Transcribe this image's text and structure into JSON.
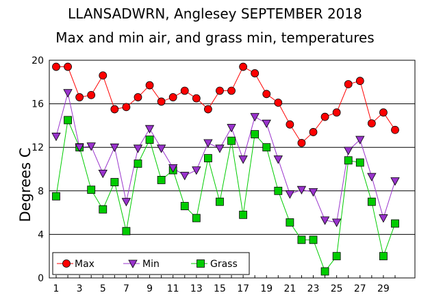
{
  "chart_data": {
    "type": "line",
    "title": "LLANSADWRN, Anglesey SEPTEMBER 2018",
    "subtitle": "Max and min air, and grass min, temperatures",
    "xlabel": "",
    "ylabel": "Degrees C",
    "xlim": [
      1,
      30
    ],
    "ylim": [
      0,
      20
    ],
    "x_ticks": [
      1,
      3,
      5,
      7,
      9,
      11,
      13,
      15,
      17,
      19,
      21,
      23,
      25,
      27,
      29
    ],
    "y_ticks": [
      0,
      4,
      8,
      12,
      16,
      20
    ],
    "grid": "horizontal",
    "legend_position": "bottom-left",
    "x": [
      1,
      2,
      3,
      4,
      5,
      6,
      7,
      8,
      9,
      10,
      11,
      12,
      13,
      14,
      15,
      16,
      17,
      18,
      19,
      20,
      21,
      22,
      23,
      24,
      25,
      26,
      27,
      28,
      29,
      30
    ],
    "series": [
      {
        "name": "Max",
        "color": "#ff0000",
        "marker": "circle",
        "values": [
          19.4,
          19.4,
          16.6,
          16.8,
          18.6,
          15.5,
          15.7,
          16.6,
          17.7,
          16.2,
          16.6,
          17.2,
          16.5,
          15.5,
          17.2,
          17.2,
          19.4,
          18.8,
          16.9,
          16.1,
          14.1,
          12.4,
          13.4,
          14.8,
          15.2,
          17.8,
          18.1,
          14.2,
          15.2,
          13.6
        ]
      },
      {
        "name": "Min",
        "color": "#9933cc",
        "marker": "triangle-down",
        "values": [
          13.0,
          17.0,
          12.0,
          12.1,
          9.6,
          12.0,
          7.0,
          11.9,
          13.7,
          11.9,
          10.1,
          9.4,
          9.9,
          12.4,
          11.9,
          13.8,
          10.9,
          14.8,
          14.2,
          10.9,
          7.7,
          8.1,
          7.9,
          5.3,
          5.1,
          11.7,
          12.7,
          9.3,
          5.5,
          8.9
        ]
      },
      {
        "name": "Grass",
        "color": "#00cc00",
        "marker": "square",
        "values": [
          7.5,
          14.5,
          12.0,
          8.1,
          6.3,
          8.8,
          4.3,
          10.5,
          12.7,
          9.0,
          9.9,
          6.6,
          5.5,
          11.0,
          7.0,
          12.6,
          5.8,
          13.2,
          12.0,
          8.0,
          5.1,
          3.5,
          3.5,
          0.6,
          2.0,
          10.8,
          10.6,
          7.0,
          2.0,
          5.0
        ]
      }
    ]
  }
}
